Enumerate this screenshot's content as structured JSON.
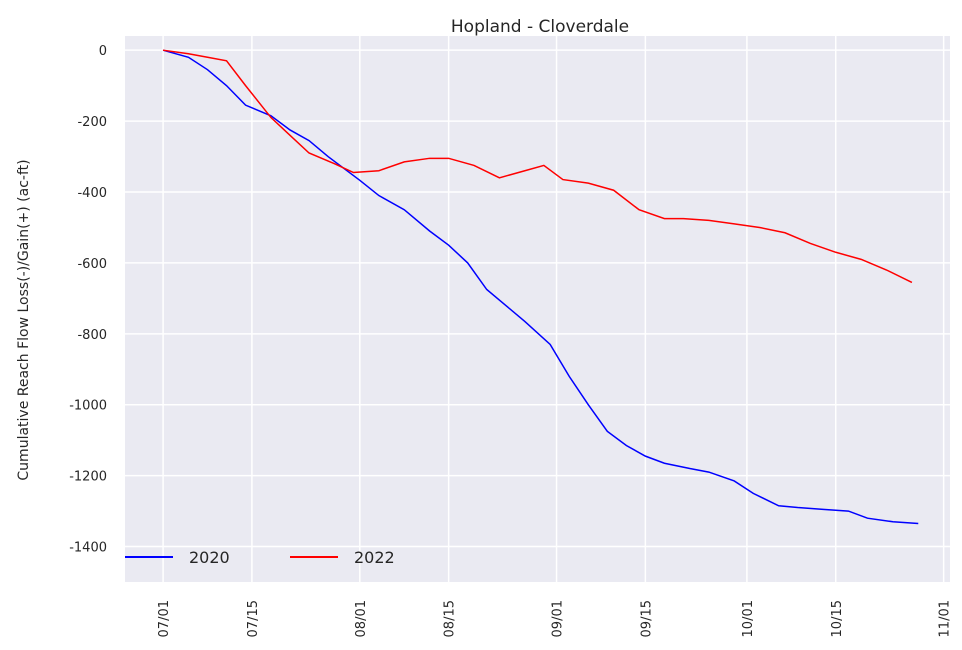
{
  "chart_data": {
    "type": "line",
    "title": "Hopland - Cloverdale",
    "ylabel": "Cumulative Reach Flow Loss(-)/Gain(+) (ac-ft)",
    "xlim": [
      "06/25",
      "11/02"
    ],
    "xticks": [
      "07/01",
      "07/15",
      "08/01",
      "08/15",
      "09/01",
      "09/15",
      "10/01",
      "10/15",
      "11/01"
    ],
    "ylim": [
      -1500,
      40
    ],
    "yticks": [
      0,
      -200,
      -400,
      -600,
      -800,
      -1000,
      -1200,
      -1400
    ],
    "grid": true,
    "legend": "lower left",
    "series": [
      {
        "name": "2020",
        "color": "#0000ff",
        "x": [
          "07/01",
          "07/05",
          "07/08",
          "07/11",
          "07/14",
          "07/18",
          "07/21",
          "07/24",
          "07/27",
          "08/01",
          "08/04",
          "08/08",
          "08/12",
          "08/15",
          "08/18",
          "08/21",
          "08/24",
          "08/27",
          "08/31",
          "09/03",
          "09/06",
          "09/09",
          "09/12",
          "09/15",
          "09/18",
          "09/22",
          "09/25",
          "09/29",
          "10/02",
          "10/06",
          "10/09",
          "10/13",
          "10/17",
          "10/20",
          "10/24",
          "10/28"
        ],
        "values": [
          0,
          -20,
          -55,
          -100,
          -155,
          -185,
          -225,
          -255,
          -300,
          -367,
          -410,
          -450,
          -510,
          -550,
          -600,
          -675,
          -720,
          -765,
          -830,
          -920,
          -1000,
          -1075,
          -1115,
          -1145,
          -1165,
          -1180,
          -1190,
          -1215,
          -1250,
          -1285,
          -1290,
          -1295,
          -1300,
          -1320,
          -1330,
          -1335
        ]
      },
      {
        "name": "2022",
        "color": "#ff0000",
        "x": [
          "07/01",
          "07/05",
          "07/08",
          "07/11",
          "07/14",
          "07/18",
          "07/21",
          "07/24",
          "07/28",
          "07/31",
          "08/04",
          "08/08",
          "08/12",
          "08/15",
          "08/19",
          "08/23",
          "08/27",
          "08/30",
          "09/02",
          "09/06",
          "09/10",
          "09/14",
          "09/18",
          "09/21",
          "09/25",
          "09/29",
          "10/03",
          "10/07",
          "10/11",
          "10/15",
          "10/19",
          "10/23",
          "10/27"
        ],
        "values": [
          0,
          -10,
          -20,
          -30,
          -100,
          -190,
          -240,
          -290,
          -320,
          -345,
          -340,
          -315,
          -305,
          -305,
          -325,
          -360,
          -340,
          -325,
          -365,
          -375,
          -395,
          -450,
          -475,
          -475,
          -480,
          -490,
          -500,
          -515,
          -545,
          -570,
          -590,
          -620,
          -655
        ]
      }
    ]
  }
}
